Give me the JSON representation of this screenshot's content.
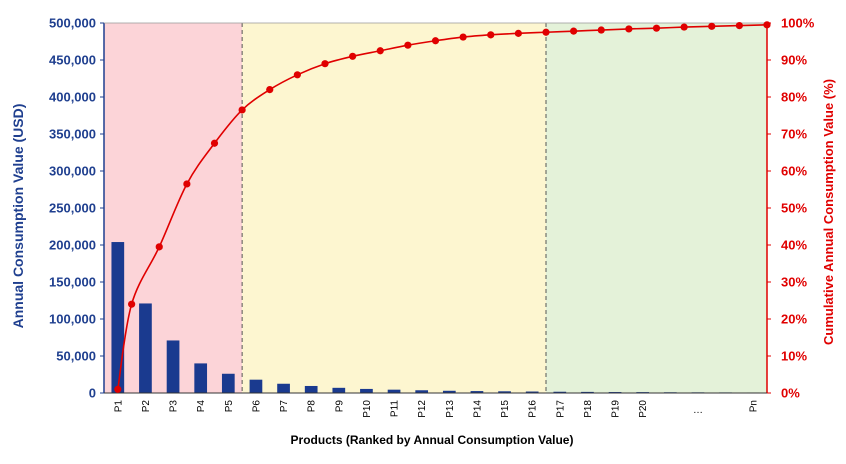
{
  "chart_data": {
    "type": "bar",
    "xlabel": "Products (Ranked by Annual Consumption Value)",
    "ylabel": "Annual Consumption Value (USD)",
    "y2label": "Cumulative Annual Consumption Value (%)",
    "ylim": [
      0,
      500000
    ],
    "y2lim": [
      0,
      100
    ],
    "y_ticks": [
      "0",
      "50,000",
      "100,000",
      "150,000",
      "200,000",
      "250,000",
      "300,000",
      "350,000",
      "400,000",
      "450,000",
      "500,000"
    ],
    "y2_ticks": [
      "0%",
      "10%",
      "20%",
      "30%",
      "40%",
      "50%",
      "60%",
      "70%",
      "80%",
      "90%",
      "100%"
    ],
    "categories": [
      "P1",
      "P2",
      "P3",
      "P4",
      "P5",
      "P6",
      "P7",
      "P8",
      "P9",
      "P10",
      "P11",
      "P12",
      "P13",
      "P14",
      "P15",
      "P16",
      "P17",
      "P18",
      "P19",
      "P20",
      "",
      "…",
      "",
      "Pn"
    ],
    "series": [
      {
        "type": "bar",
        "axis": "left",
        "color": "#1a3a8f",
        "values": [
          204000,
          121000,
          71000,
          40000,
          26000,
          18000,
          12500,
          9500,
          7000,
          5500,
          4500,
          3700,
          3000,
          2600,
          2300,
          2000,
          1700,
          1500,
          1300,
          1200,
          1000,
          900,
          800,
          700
        ]
      },
      {
        "type": "line",
        "axis": "right",
        "color": "#e00000",
        "x": [
          0.5,
          1,
          2,
          3,
          4,
          5,
          6,
          7,
          8,
          9,
          10,
          11,
          12,
          13,
          14,
          15,
          16,
          17,
          18,
          19,
          20,
          21,
          22,
          23,
          24
        ],
        "values": [
          1,
          24,
          39.5,
          56.5,
          67.5,
          76.5,
          82,
          86,
          89,
          91,
          92.5,
          94,
          95.2,
          96.2,
          96.8,
          97.2,
          97.5,
          97.8,
          98.1,
          98.4,
          98.6,
          98.9,
          99.1,
          99.3,
          99.5
        ]
      }
    ],
    "zones": [
      {
        "from_category": 0,
        "to_category": 5,
        "color": "#fcd4d8"
      },
      {
        "from_category": 5,
        "to_category": 16,
        "color": "#fdf6d0"
      },
      {
        "from_category": 16,
        "to_category": 24,
        "color": "#e4f2d9"
      }
    ],
    "grid": false,
    "legend": "none"
  }
}
